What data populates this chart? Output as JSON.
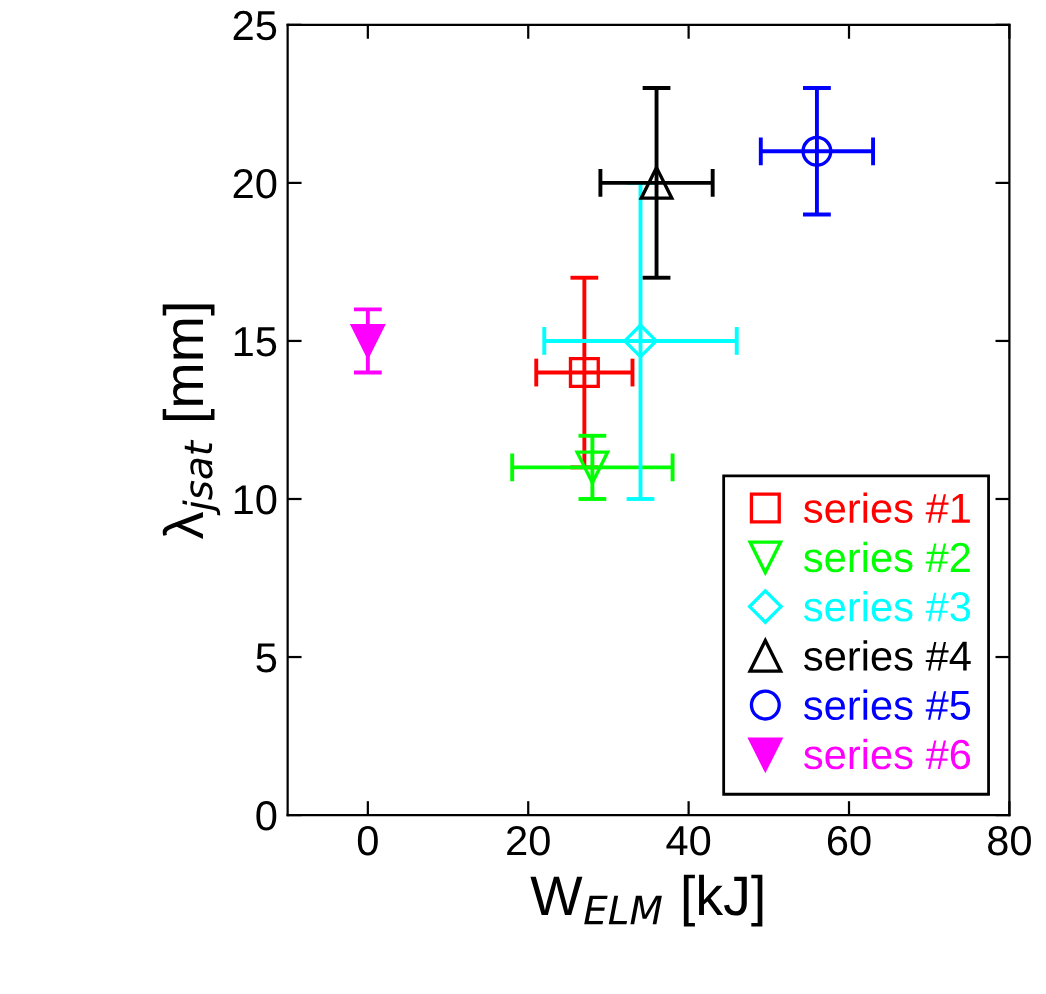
{
  "chart_data": {
    "type": "scatter",
    "xlabel": "W$_{ELM}$ [kJ]",
    "ylabel": "λ$_{jsat}$ [mm]",
    "xlim": [
      -10,
      80
    ],
    "xticks": [
      0,
      20,
      40,
      60,
      80
    ],
    "ylim": [
      0,
      25
    ],
    "yticks": [
      0,
      5,
      10,
      15,
      20,
      25
    ],
    "grid": false,
    "legend": "bottom right",
    "series": [
      {
        "name": "series #1",
        "color": "#ff0000",
        "marker": "square",
        "x": [
          27
        ],
        "values": [
          14
        ],
        "errors": [
          [
            11,
            17
          ]
        ],
        "xerrors": [
          [
            21,
            33
          ]
        ]
      },
      {
        "name": "series #2",
        "color": "#00ff00",
        "marker": "triangle-down",
        "x": [
          28
        ],
        "values": [
          11
        ],
        "errors": [
          [
            10,
            12
          ]
        ],
        "xerrors": [
          [
            18,
            38
          ]
        ]
      },
      {
        "name": "series #3",
        "color": "#00ffff",
        "marker": "diamond",
        "x": [
          34
        ],
        "values": [
          15
        ],
        "errors": [
          [
            10,
            20
          ]
        ],
        "xerrors": [
          [
            22,
            46
          ]
        ]
      },
      {
        "name": "series #4",
        "color": "#000000",
        "marker": "triangle",
        "x": [
          36
        ],
        "values": [
          20
        ],
        "errors": [
          [
            17,
            23
          ]
        ],
        "xerrors": [
          [
            29,
            43
          ]
        ]
      },
      {
        "name": "series #5",
        "color": "#0000ff",
        "marker": "circle",
        "x": [
          56
        ],
        "values": [
          21
        ],
        "errors": [
          [
            19,
            23
          ]
        ],
        "xerrors": [
          [
            49,
            63
          ]
        ]
      },
      {
        "name": "series #6",
        "color": "#ff00ff",
        "marker": "triangle-down-filled",
        "x": [
          0
        ],
        "values": [
          15
        ],
        "errors": [
          [
            14,
            16
          ]
        ]
      }
    ]
  }
}
